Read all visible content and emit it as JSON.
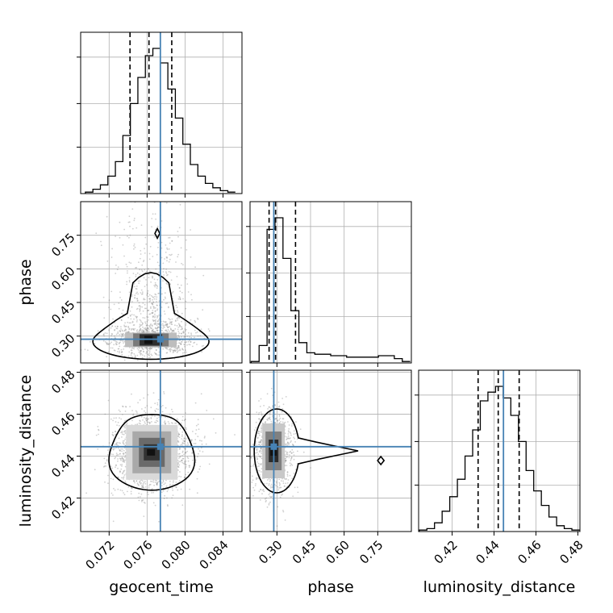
{
  "chart_data": {
    "type": "corner",
    "parameters": [
      "geocent_time",
      "phase",
      "luminosity_distance"
    ],
    "axis_labels": {
      "geocent_time": "geocent_time",
      "phase": "phase",
      "luminosity_distance": "luminosity_distance"
    },
    "ranges": {
      "geocent_time": [
        0.069,
        0.086
      ],
      "phase": [
        0.18,
        0.9
      ],
      "luminosity_distance": [
        0.404,
        0.481
      ]
    },
    "ticks": {
      "geocent_time": [
        "0.072",
        "0.076",
        "0.080",
        "0.084"
      ],
      "phase": [
        "0.30",
        "0.45",
        "0.60",
        "0.75"
      ],
      "luminosity_distance": [
        "0.42",
        "0.44",
        "0.46",
        "0.48"
      ]
    },
    "truths": {
      "geocent_time": 0.0774,
      "phase": 0.286,
      "luminosity_distance": 0.4445
    },
    "quantiles": {
      "geocent_time": [
        0.0742,
        0.0762,
        0.0786
      ],
      "phase": [
        0.265,
        0.294,
        0.383
      ],
      "luminosity_distance": [
        0.4324,
        0.442,
        0.452
      ]
    },
    "histograms": {
      "geocent_time": [
        0.01,
        0.03,
        0.06,
        0.12,
        0.22,
        0.4,
        0.62,
        0.8,
        0.95,
        1.0,
        0.9,
        0.72,
        0.52,
        0.34,
        0.2,
        0.12,
        0.07,
        0.04,
        0.02,
        0.01
      ],
      "phase": [
        0.01,
        0.12,
        0.92,
        1.0,
        0.72,
        0.36,
        0.14,
        0.07,
        0.06,
        0.06,
        0.05,
        0.05,
        0.04,
        0.04,
        0.04,
        0.04,
        0.05,
        0.05,
        0.03,
        0.01
      ],
      "luminosity_distance": [
        0.01,
        0.02,
        0.06,
        0.14,
        0.24,
        0.36,
        0.52,
        0.7,
        0.9,
        0.96,
        1.0,
        0.92,
        0.8,
        0.62,
        0.42,
        0.28,
        0.18,
        0.1,
        0.04,
        0.02,
        0.01
      ]
    },
    "hist_edges": {
      "geocent_time": [
        0.0695,
        0.0853
      ],
      "phase": [
        0.185,
        0.895
      ],
      "luminosity_distance": [
        0.4043,
        0.4808
      ]
    },
    "peaks_2d": {
      "phase_vs_geocent_time": {
        "x": 0.0764,
        "y": 0.283
      },
      "luminosity_distance_vs_geocent_time": {
        "x": 0.0765,
        "y": 0.4418
      },
      "luminosity_distance_vs_phase": {
        "x": 0.285,
        "y": 0.4425
      }
    },
    "colors": {
      "truth": "#4682b4",
      "hist": "#000000",
      "contour": "#000000",
      "grid": "#b0b0b0"
    },
    "grid": true
  }
}
